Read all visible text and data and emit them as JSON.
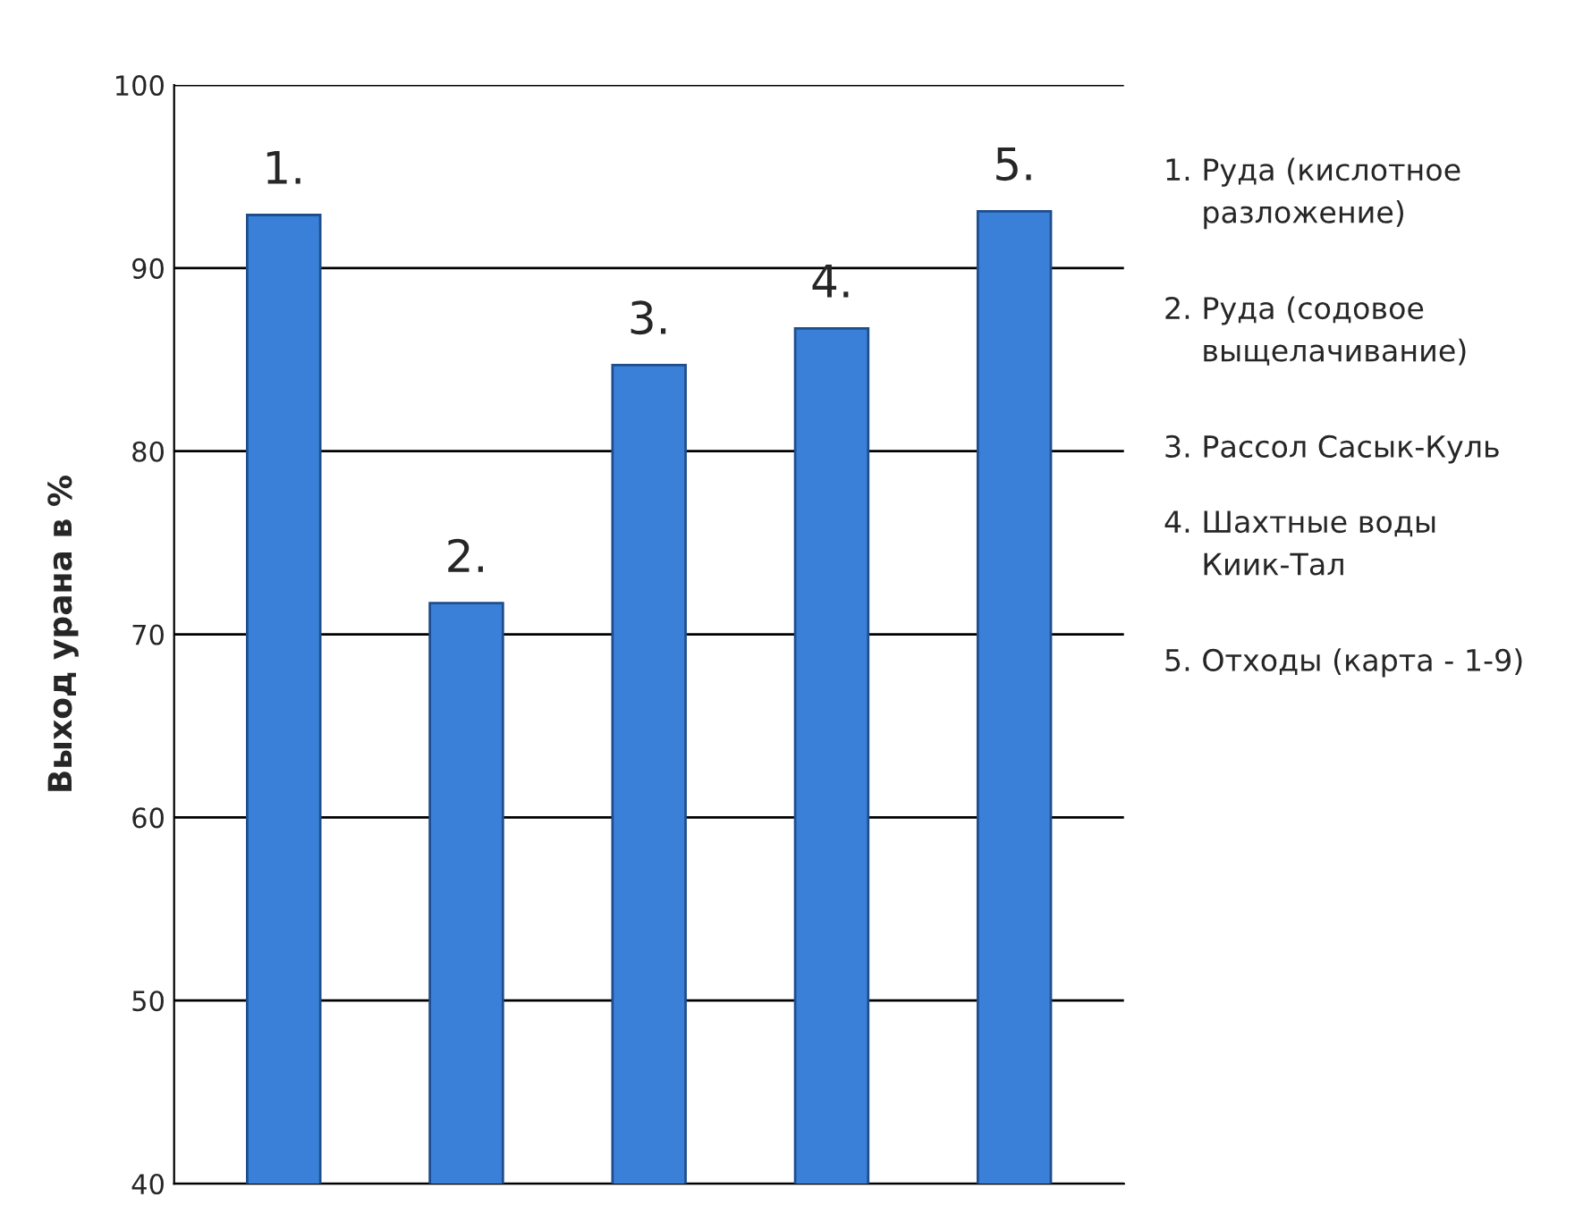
{
  "chart_data": {
    "type": "bar",
    "ylabel": "Выход урана в %",
    "categories": [
      "1.",
      "2.",
      "3.",
      "4.",
      "5."
    ],
    "values": [
      92.9,
      71.7,
      84.7,
      86.7,
      93.1
    ],
    "color": "#3a80d8",
    "ylim": [
      40,
      100
    ],
    "yticks": [
      40,
      50,
      60,
      70,
      80,
      90,
      100
    ],
    "grid": "y",
    "annotations": [
      "1. Руда (кислотное\n    разложение)",
      "2. Руда (содовое\n    выщелачивание)",
      "3. Рассол Сасык-Куль",
      "4. Шахтные воды\n    Киик-Тал",
      "5. Отходы (карта - 1-9)"
    ]
  }
}
